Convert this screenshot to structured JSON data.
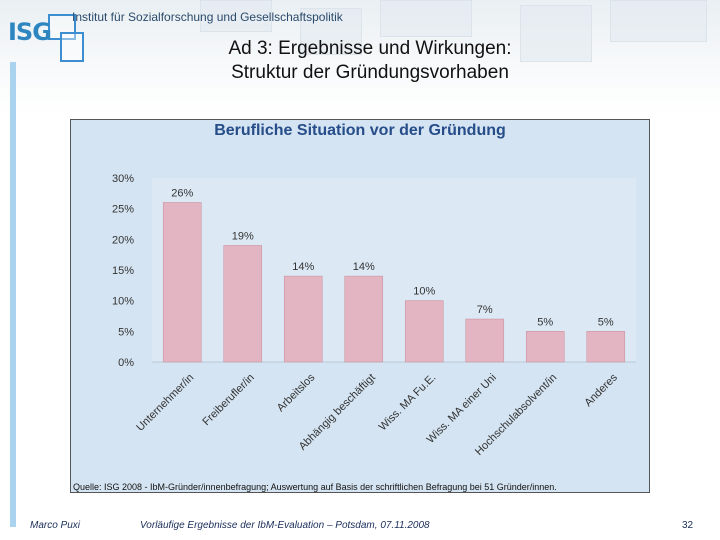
{
  "header": {
    "logo_text": "ISG",
    "institute": "Institut für Sozialforschung und Gesellschaftspolitik",
    "title_line1": "Ad 3: Ergebnisse und Wirkungen:",
    "title_line2": "Struktur der Gründungsvorhaben"
  },
  "chart_data": {
    "type": "bar",
    "title": "Berufliche Situation vor der Gründung",
    "categories": [
      "Unternehmer/in",
      "Freiberufler/in",
      "Arbeitslos",
      "Abhängig beschäftigt",
      "Wiss. MA Fu.E.",
      "Wiss. MA einer Uni",
      "Hochschulabsolvent/in",
      "Anderes"
    ],
    "values": [
      26,
      19,
      14,
      14,
      10,
      7,
      5,
      5
    ],
    "value_labels": [
      "26%",
      "19%",
      "14%",
      "14%",
      "10%",
      "7%",
      "5%",
      "5%"
    ],
    "yticks": [
      "0%",
      "5%",
      "10%",
      "15%",
      "20%",
      "25%",
      "30%"
    ],
    "ylim": [
      0,
      30
    ],
    "bar_color": "#e3b5c2",
    "source": "Quelle: ISG 2008 - IbM-Gründer/innenbefragung; Auswertung auf Basis der schriftlichen Befragung bei 51 Gründer/innen."
  },
  "footer": {
    "author": "Marco Puxi",
    "note": "Vorläufige Ergebnisse der IbM-Evaluation – Potsdam, 07.11.2008",
    "page": "32"
  }
}
